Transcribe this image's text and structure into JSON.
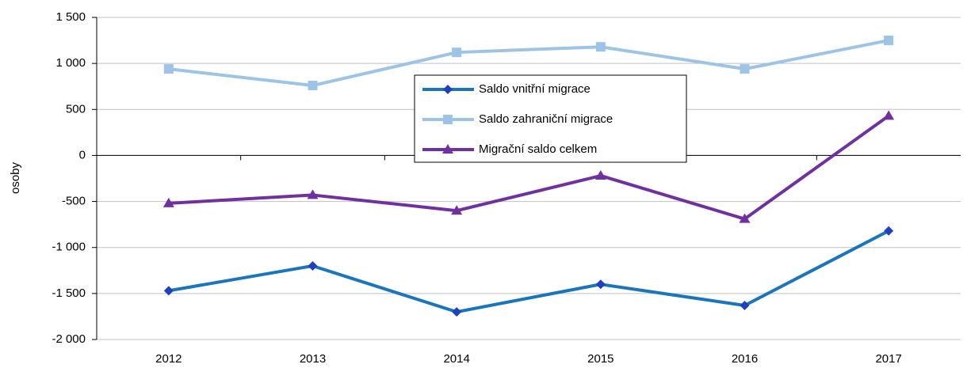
{
  "chart_data": {
    "type": "line",
    "y_label": "osoby",
    "categories": [
      "2012",
      "2013",
      "2014",
      "2015",
      "2016",
      "2017"
    ],
    "series": [
      {
        "name": "Saldo vnitřní migrace",
        "color": "#1a75bc",
        "marker": "diamond",
        "values": [
          -1470,
          -1200,
          -1700,
          -1400,
          -1630,
          -820
        ]
      },
      {
        "name": "Saldo zahraniční migrace",
        "color": "#9dc3e6",
        "marker": "square",
        "values": [
          940,
          760,
          1120,
          1180,
          940,
          1250
        ]
      },
      {
        "name": "Migrační saldo celkem",
        "color": "#7030a0",
        "marker": "triangle",
        "values": [
          -520,
          -430,
          -600,
          -220,
          -690,
          430
        ]
      }
    ],
    "ylim": [
      -2000,
      1500
    ],
    "yticks": [
      {
        "value": -2000,
        "label": "-2 000"
      },
      {
        "value": -1500,
        "label": "-1 500"
      },
      {
        "value": -1000,
        "label": "-1 000"
      },
      -500,
      0,
      500,
      {
        "value": 1000,
        "label": "1 000"
      },
      {
        "value": 1500,
        "label": "1 500"
      }
    ],
    "grid": true
  }
}
